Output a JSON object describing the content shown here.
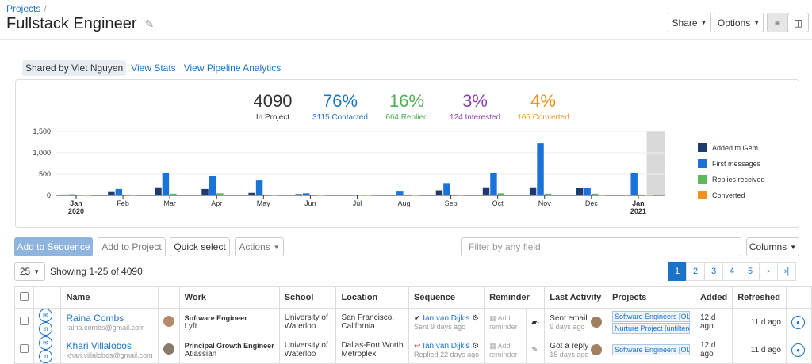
{
  "breadcrumb": {
    "link": "Projects",
    "sep": "/"
  },
  "page": {
    "title": "Fullstack Engineer"
  },
  "header_buttons": {
    "share": "Share",
    "options": "Options"
  },
  "tabs": [
    {
      "label": "Shared by Viet Nguyen"
    },
    {
      "label": "View Stats"
    },
    {
      "label": "View Pipeline Analytics"
    }
  ],
  "stats": [
    {
      "big": "4090",
      "sub": "In Project",
      "color": "#333333"
    },
    {
      "big": "76%",
      "sub": "3115 Contacted",
      "color": "#1a73c8"
    },
    {
      "big": "16%",
      "sub": "664 Replied",
      "color": "#4caf50"
    },
    {
      "big": "3%",
      "sub": "124 Interested",
      "color": "#8e3ab5"
    },
    {
      "big": "4%",
      "sub": "165 Converted",
      "color": "#f0901e"
    }
  ],
  "chart_data": {
    "type": "bar",
    "categories": [
      "Jan 2020",
      "Feb",
      "Mar",
      "Apr",
      "May",
      "Jun",
      "Jul",
      "Aug",
      "Sep",
      "Oct",
      "Nov",
      "Dec",
      "Jan 2021"
    ],
    "tick_labels": [
      [
        "Jan",
        "2020"
      ],
      [
        "Feb"
      ],
      [
        "Mar"
      ],
      [
        "Apr"
      ],
      [
        "May"
      ],
      [
        "Jun"
      ],
      [
        "Jul"
      ],
      [
        "Aug"
      ],
      [
        "Sep"
      ],
      [
        "Oct"
      ],
      [
        "Nov"
      ],
      [
        "Dec"
      ],
      [
        "Jan",
        "2021"
      ]
    ],
    "series": [
      {
        "name": "Added to Gem",
        "color": "#1f3a6e",
        "values": [
          20,
          80,
          190,
          150,
          60,
          30,
          5,
          10,
          120,
          190,
          190,
          180,
          0
        ]
      },
      {
        "name": "First messages",
        "color": "#1a73d9",
        "values": [
          25,
          150,
          520,
          450,
          350,
          50,
          5,
          90,
          290,
          520,
          1220,
          180,
          530
        ]
      },
      {
        "name": "Replies received",
        "color": "#5cb85c",
        "values": [
          5,
          20,
          40,
          50,
          20,
          10,
          2,
          20,
          20,
          50,
          40,
          40,
          20
        ]
      },
      {
        "name": "Converted",
        "color": "#f0901e",
        "values": [
          2,
          5,
          10,
          10,
          5,
          3,
          1,
          2,
          5,
          10,
          10,
          5,
          2
        ]
      }
    ],
    "yticks": [
      "0",
      "500",
      "1,000",
      "1,500"
    ],
    "ylim": [
      0,
      1500
    ],
    "highlight_last": true
  },
  "toolbar": {
    "add_sequence": "Add to Sequence",
    "add_project": "Add to Project",
    "quick_select": "Quick select",
    "actions": "Actions",
    "filter_placeholder": "Filter by any field",
    "columns": "Columns"
  },
  "page_size": "25",
  "showing": "Showing 1-25 of 4090",
  "pager": {
    "pages": [
      "1",
      "2",
      "3",
      "4",
      "5"
    ],
    "next": "›",
    "last": "›|"
  },
  "table": {
    "headers": [
      "Name",
      "Work",
      "School",
      "Location",
      "Sequence",
      "Reminder",
      "Last Activity",
      "Projects",
      "Added",
      "Refreshed"
    ],
    "rows": [
      {
        "name": "Raina Combs",
        "email": "raina.combs@gmail.com",
        "work_title": "Software Engineer",
        "work_company": "Lyft",
        "school1": "University of",
        "school2": "Waterloo",
        "loc1": "San Francisco,",
        "loc2": "California",
        "seq_mark": "✔",
        "seq_name": "Ian van Dijk's",
        "seq_sub": "Sent 9 days ago",
        "reminder": "Add reminder",
        "activity": "Sent email",
        "activity_sub": "9 days ago",
        "projects": [
          "Software Engineers [OLD]",
          "Nurture Project [unfiltered]"
        ],
        "added": "12 d ago",
        "refreshed": "11 d ago"
      },
      {
        "name": "Khari Villalobos",
        "email": "khari.villalobos@gmail.com",
        "work_title": "Principal Growth Engineer",
        "work_company": "Atlassian",
        "school1": "University of",
        "school2": "Waterloo",
        "loc1": "Dallas-Fort Worth",
        "loc2": "Metroplex",
        "seq_mark": "↩",
        "seq_name": "Ian van Dijk's",
        "seq_sub": "Replied 22 days ago",
        "reminder": "Add reminder",
        "activity": "Got a reply",
        "activity_sub": "15 days ago",
        "projects": [
          "Software Engineers [OLD]"
        ],
        "added": "12 d ago",
        "refreshed": "11 d ago"
      }
    ]
  }
}
